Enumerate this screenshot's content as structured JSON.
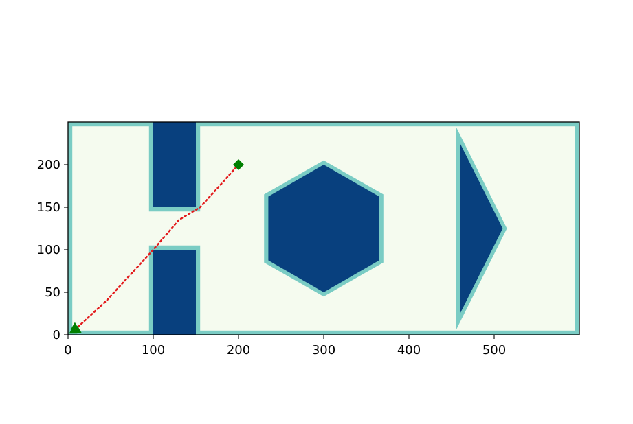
{
  "chart_data": {
    "type": "scatter",
    "title": "",
    "xlabel": "",
    "ylabel": "",
    "xlim": [
      0,
      600
    ],
    "ylim": [
      0,
      250
    ],
    "xticks": [
      0,
      100,
      200,
      300,
      400,
      500
    ],
    "yticks": [
      0,
      50,
      100,
      150,
      200
    ],
    "grid": false,
    "colors": {
      "free_space": "#f5fbef",
      "obstacle_margin": "#7accc4",
      "obstacle": "#08407e",
      "path": "#e31a1c",
      "start_goal": "#007f00",
      "axes": "#000000"
    },
    "world_boundary": {
      "x": [
        0,
        600
      ],
      "y": [
        0,
        250
      ],
      "margin": 5
    },
    "obstacles": [
      {
        "shape": "rectangle",
        "inner": {
          "x": [
            100,
            150
          ],
          "y": [
            150,
            250
          ]
        },
        "margin": 5
      },
      {
        "shape": "rectangle",
        "inner": {
          "x": [
            100,
            150
          ],
          "y": [
            0,
            100
          ]
        },
        "margin": 5
      },
      {
        "shape": "hexagon",
        "inner": [
          [
            300,
            200
          ],
          [
            365,
            162.5
          ],
          [
            365,
            87.5
          ],
          [
            300,
            50
          ],
          [
            235,
            87.5
          ],
          [
            235,
            162.5
          ]
        ],
        "outer": [
          [
            300,
            205
          ],
          [
            370,
            165
          ],
          [
            370,
            85
          ],
          [
            300,
            45
          ],
          [
            230,
            85
          ],
          [
            230,
            165
          ]
        ]
      },
      {
        "shape": "triangle",
        "inner": [
          [
            460,
            225
          ],
          [
            510,
            125
          ],
          [
            460,
            25
          ]
        ],
        "outer": [
          [
            455,
            245
          ],
          [
            515,
            125
          ],
          [
            455,
            5
          ]
        ]
      }
    ],
    "path": {
      "style": "dotted",
      "points": [
        [
          8,
          6
        ],
        [
          45,
          40
        ],
        [
          100,
          100
        ],
        [
          130,
          135
        ],
        [
          155,
          150
        ],
        [
          175,
          172
        ],
        [
          200,
          200
        ]
      ]
    },
    "start_marker": {
      "shape": "triangle",
      "cluster": [
        [
          8,
          10
        ],
        [
          11,
          6
        ],
        [
          6,
          5
        ]
      ]
    },
    "goal_marker": {
      "shape": "diamond",
      "point": [
        200,
        200
      ]
    }
  }
}
